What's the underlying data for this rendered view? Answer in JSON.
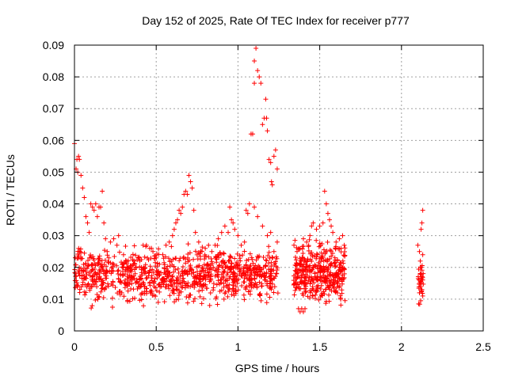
{
  "chart_data": {
    "type": "scatter",
    "title": "Day 152 of 2025, Rate Of TEC Index for receiver p777",
    "xlabel": "GPS time / hours",
    "ylabel": "ROTI / TECUs",
    "xlim": [
      0,
      2.5
    ],
    "ylim": [
      0,
      0.09
    ],
    "xticks": [
      "0",
      "0.5",
      "1",
      "1.5",
      "2",
      "2.5"
    ],
    "yticks": [
      "0",
      "0.01",
      "0.02",
      "0.03",
      "0.04",
      "0.05",
      "0.06",
      "0.07",
      "0.08",
      "0.09"
    ],
    "grid": true,
    "marker": "+",
    "colors": {
      "marker": "#ff0000",
      "grid": "#a0a0a0",
      "axis": "#000000"
    },
    "series": [
      {
        "name": "ROTI",
        "points": [
          [
            0.0,
            0.059
          ],
          [
            0.01,
            0.051
          ],
          [
            0.015,
            0.054
          ],
          [
            0.02,
            0.05
          ],
          [
            0.025,
            0.055
          ],
          [
            0.03,
            0.054
          ],
          [
            0.04,
            0.049
          ],
          [
            0.05,
            0.045
          ],
          [
            0.06,
            0.042
          ],
          [
            0.07,
            0.036
          ],
          [
            0.08,
            0.034
          ],
          [
            0.09,
            0.031
          ],
          [
            0.1,
            0.04
          ],
          [
            0.11,
            0.039
          ],
          [
            0.12,
            0.038
          ],
          [
            0.13,
            0.04
          ],
          [
            0.14,
            0.036
          ],
          [
            0.15,
            0.039
          ],
          [
            0.16,
            0.039
          ],
          [
            0.17,
            0.044
          ],
          [
            0.18,
            0.034
          ],
          [
            0.19,
            0.029
          ],
          [
            0.2,
            0.025
          ],
          [
            0.21,
            0.023
          ],
          [
            0.22,
            0.028
          ],
          [
            0.24,
            0.029
          ],
          [
            0.26,
            0.027
          ],
          [
            0.27,
            0.03
          ],
          [
            0.3,
            0.024
          ],
          [
            0.32,
            0.022
          ],
          [
            0.36,
            0.021
          ],
          [
            0.4,
            0.022
          ],
          [
            0.42,
            0.027
          ],
          [
            0.44,
            0.027
          ],
          [
            0.46,
            0.026
          ],
          [
            0.48,
            0.025
          ],
          [
            0.5,
            0.023
          ],
          [
            0.52,
            0.021
          ],
          [
            0.54,
            0.024
          ],
          [
            0.56,
            0.027
          ],
          [
            0.58,
            0.028
          ],
          [
            0.6,
            0.03
          ],
          [
            0.61,
            0.032
          ],
          [
            0.62,
            0.034
          ],
          [
            0.63,
            0.035
          ],
          [
            0.64,
            0.038
          ],
          [
            0.65,
            0.037
          ],
          [
            0.66,
            0.039
          ],
          [
            0.67,
            0.043
          ],
          [
            0.68,
            0.044
          ],
          [
            0.69,
            0.043
          ],
          [
            0.7,
            0.049
          ],
          [
            0.71,
            0.047
          ],
          [
            0.72,
            0.045
          ],
          [
            0.73,
            0.038
          ],
          [
            0.74,
            0.031
          ],
          [
            0.76,
            0.028
          ],
          [
            0.78,
            0.025
          ],
          [
            0.8,
            0.026
          ],
          [
            0.82,
            0.027
          ],
          [
            0.84,
            0.025
          ],
          [
            0.86,
            0.027
          ],
          [
            0.88,
            0.029
          ],
          [
            0.9,
            0.031
          ],
          [
            0.92,
            0.033
          ],
          [
            0.94,
            0.031
          ],
          [
            0.95,
            0.039
          ],
          [
            0.96,
            0.035
          ],
          [
            0.97,
            0.034
          ],
          [
            0.98,
            0.032
          ],
          [
            1.0,
            0.03
          ],
          [
            1.02,
            0.027
          ],
          [
            1.04,
            0.028
          ],
          [
            1.05,
            0.038
          ],
          [
            1.06,
            0.037
          ],
          [
            1.07,
            0.04
          ],
          [
            1.08,
            0.062
          ],
          [
            1.09,
            0.062
          ],
          [
            1.1,
            0.078
          ],
          [
            1.1,
            0.085
          ],
          [
            1.11,
            0.089
          ],
          [
            1.12,
            0.082
          ],
          [
            1.13,
            0.08
          ],
          [
            1.14,
            0.078
          ],
          [
            1.15,
            0.065
          ],
          [
            1.16,
            0.067
          ],
          [
            1.17,
            0.073
          ],
          [
            1.175,
            0.067
          ],
          [
            1.18,
            0.063
          ],
          [
            1.19,
            0.054
          ],
          [
            1.2,
            0.053
          ],
          [
            1.205,
            0.047
          ],
          [
            1.21,
            0.046
          ],
          [
            1.22,
            0.055
          ],
          [
            1.23,
            0.057
          ],
          [
            1.24,
            0.051
          ],
          [
            1.1,
            0.039
          ],
          [
            1.12,
            0.036
          ],
          [
            1.15,
            0.033
          ],
          [
            1.18,
            0.03
          ],
          [
            1.2,
            0.031
          ],
          [
            1.22,
            0.025
          ],
          [
            1.24,
            0.028
          ],
          [
            1.37,
            0.007
          ],
          [
            1.38,
            0.006
          ],
          [
            1.39,
            0.007
          ],
          [
            1.4,
            0.006
          ],
          [
            1.41,
            0.007
          ],
          [
            1.38,
            0.026
          ],
          [
            1.4,
            0.029
          ],
          [
            1.42,
            0.028
          ],
          [
            1.44,
            0.03
          ],
          [
            1.45,
            0.033
          ],
          [
            1.46,
            0.034
          ],
          [
            1.48,
            0.032
          ],
          [
            1.5,
            0.033
          ],
          [
            1.52,
            0.034
          ],
          [
            1.53,
            0.044
          ],
          [
            1.54,
            0.04
          ],
          [
            1.55,
            0.037
          ],
          [
            1.56,
            0.035
          ],
          [
            1.57,
            0.033
          ],
          [
            1.58,
            0.031
          ],
          [
            1.6,
            0.028
          ],
          [
            1.62,
            0.029
          ],
          [
            1.63,
            0.026
          ],
          [
            1.64,
            0.03
          ],
          [
            1.65,
            0.027
          ],
          [
            2.1,
            0.027
          ],
          [
            2.11,
            0.025
          ],
          [
            2.12,
            0.032
          ],
          [
            2.125,
            0.034
          ],
          [
            2.13,
            0.038
          ],
          [
            2.115,
            0.018
          ],
          [
            2.12,
            0.015
          ],
          [
            2.11,
            0.012
          ],
          [
            2.13,
            0.011
          ],
          [
            2.105,
            0.0085
          ],
          [
            2.125,
            0.013
          ],
          [
            2.12,
            0.02
          ],
          [
            2.115,
            0.022
          ],
          [
            2.13,
            0.024
          ]
        ]
      }
    ],
    "dense_band": {
      "description_free": true,
      "segments": [
        {
          "x": [
            0.0,
            1.245
          ],
          "y_center": 0.0175,
          "y_spread": 0.0085,
          "count": 1000
        },
        {
          "x": [
            1.34,
            1.655
          ],
          "y_center": 0.0185,
          "y_spread": 0.0095,
          "count": 380
        },
        {
          "x": [
            2.1,
            2.135
          ],
          "y_center": 0.015,
          "y_spread": 0.006,
          "count": 30
        }
      ]
    }
  }
}
